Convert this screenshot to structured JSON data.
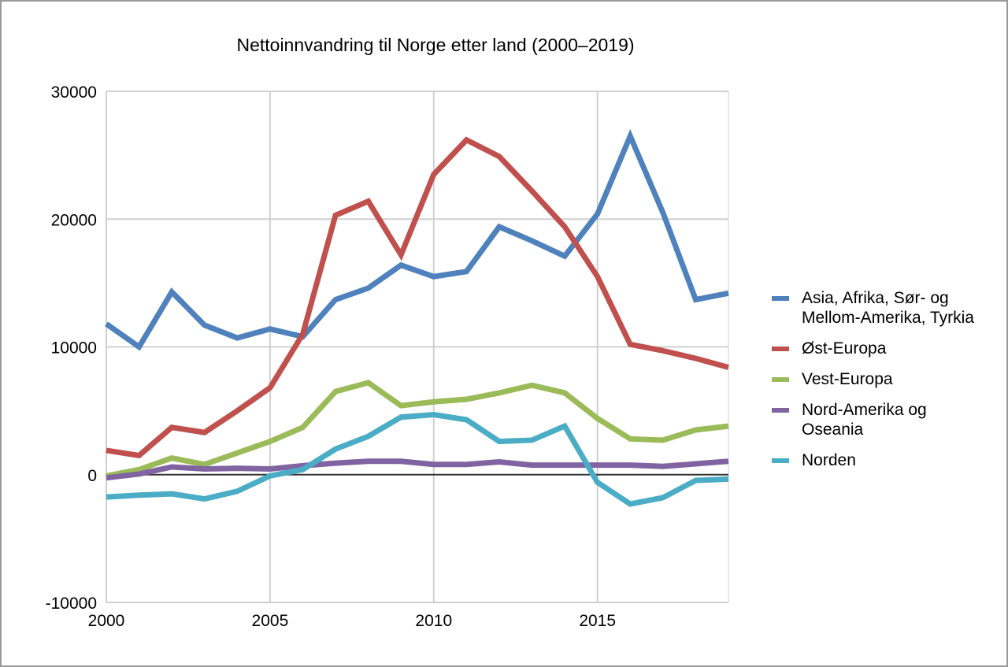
{
  "chart_data": {
    "type": "line",
    "title": "Nettoinnvandring til Norge etter land (2000–2019)",
    "xlabel": "",
    "ylabel": "",
    "xlim": [
      2000,
      2019
    ],
    "ylim": [
      -10000,
      30000
    ],
    "x_ticks": [
      "2000",
      "2005",
      "2010",
      "2015"
    ],
    "y_ticks": [
      "30000",
      "20000",
      "10000",
      "0",
      "-10000"
    ],
    "grid": true,
    "legend_position": "right",
    "x": [
      2000,
      2001,
      2002,
      2003,
      2004,
      2005,
      2006,
      2007,
      2008,
      2009,
      2010,
      2011,
      2012,
      2013,
      2014,
      2015,
      2016,
      2017,
      2018,
      2019
    ],
    "series": [
      {
        "name": "Asia, Afrika, Sør- og Mellom-Amerika, Tyrkia",
        "color": "#4f81bd",
        "values": [
          11800,
          10000,
          14300,
          11700,
          10700,
          11400,
          10800,
          13700,
          14600,
          16400,
          15500,
          15900,
          19400,
          18300,
          17100,
          20400,
          26500,
          20500,
          13700,
          14200
        ]
      },
      {
        "name": "Øst-Europa",
        "color": "#c0504d",
        "values": [
          1900,
          1500,
          3700,
          3300,
          5000,
          6800,
          11000,
          20300,
          21400,
          17200,
          23500,
          26200,
          24900,
          22200,
          19400,
          15500,
          10200,
          9700,
          9100,
          8400
        ]
      },
      {
        "name": "Vest-Europa",
        "color": "#9bbb59",
        "values": [
          -100,
          400,
          1300,
          800,
          1700,
          2600,
          3700,
          6500,
          7200,
          5400,
          5700,
          5900,
          6400,
          7000,
          6400,
          4400,
          2800,
          2700,
          3500,
          3800
        ]
      },
      {
        "name": "Nord-Amerika og Oseania",
        "color": "#8064a2",
        "values": [
          -250,
          50,
          600,
          450,
          500,
          450,
          700,
          900,
          1050,
          1050,
          800,
          800,
          1000,
          750,
          750,
          750,
          750,
          650,
          850,
          1050
        ]
      },
      {
        "name": "Norden",
        "color": "#4bacc6",
        "values": [
          -1750,
          -1600,
          -1500,
          -1900,
          -1300,
          -100,
          400,
          2000,
          3000,
          4500,
          4700,
          4300,
          2600,
          2700,
          3800,
          -600,
          -2300,
          -1800,
          -450,
          -350
        ]
      }
    ]
  }
}
